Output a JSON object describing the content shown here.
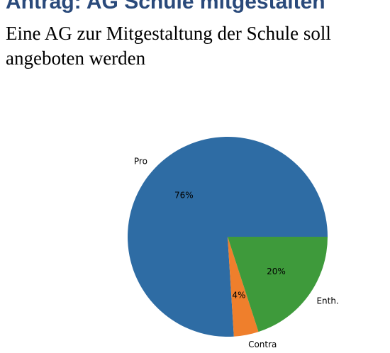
{
  "chart_data": {
    "type": "pie",
    "title": "Antrag: AG Schule mitgestalten",
    "subtitle": "Eine AG zur Mitgestaltung der Schule soll angeboten werden",
    "categories": [
      "Pro",
      "Contra",
      "Enth."
    ],
    "values": [
      76,
      4,
      20
    ],
    "value_labels": [
      "76%",
      "4%",
      "20%"
    ],
    "colors": [
      "#2e6ca4",
      "#ef7f2c",
      "#3e9a3b"
    ]
  }
}
